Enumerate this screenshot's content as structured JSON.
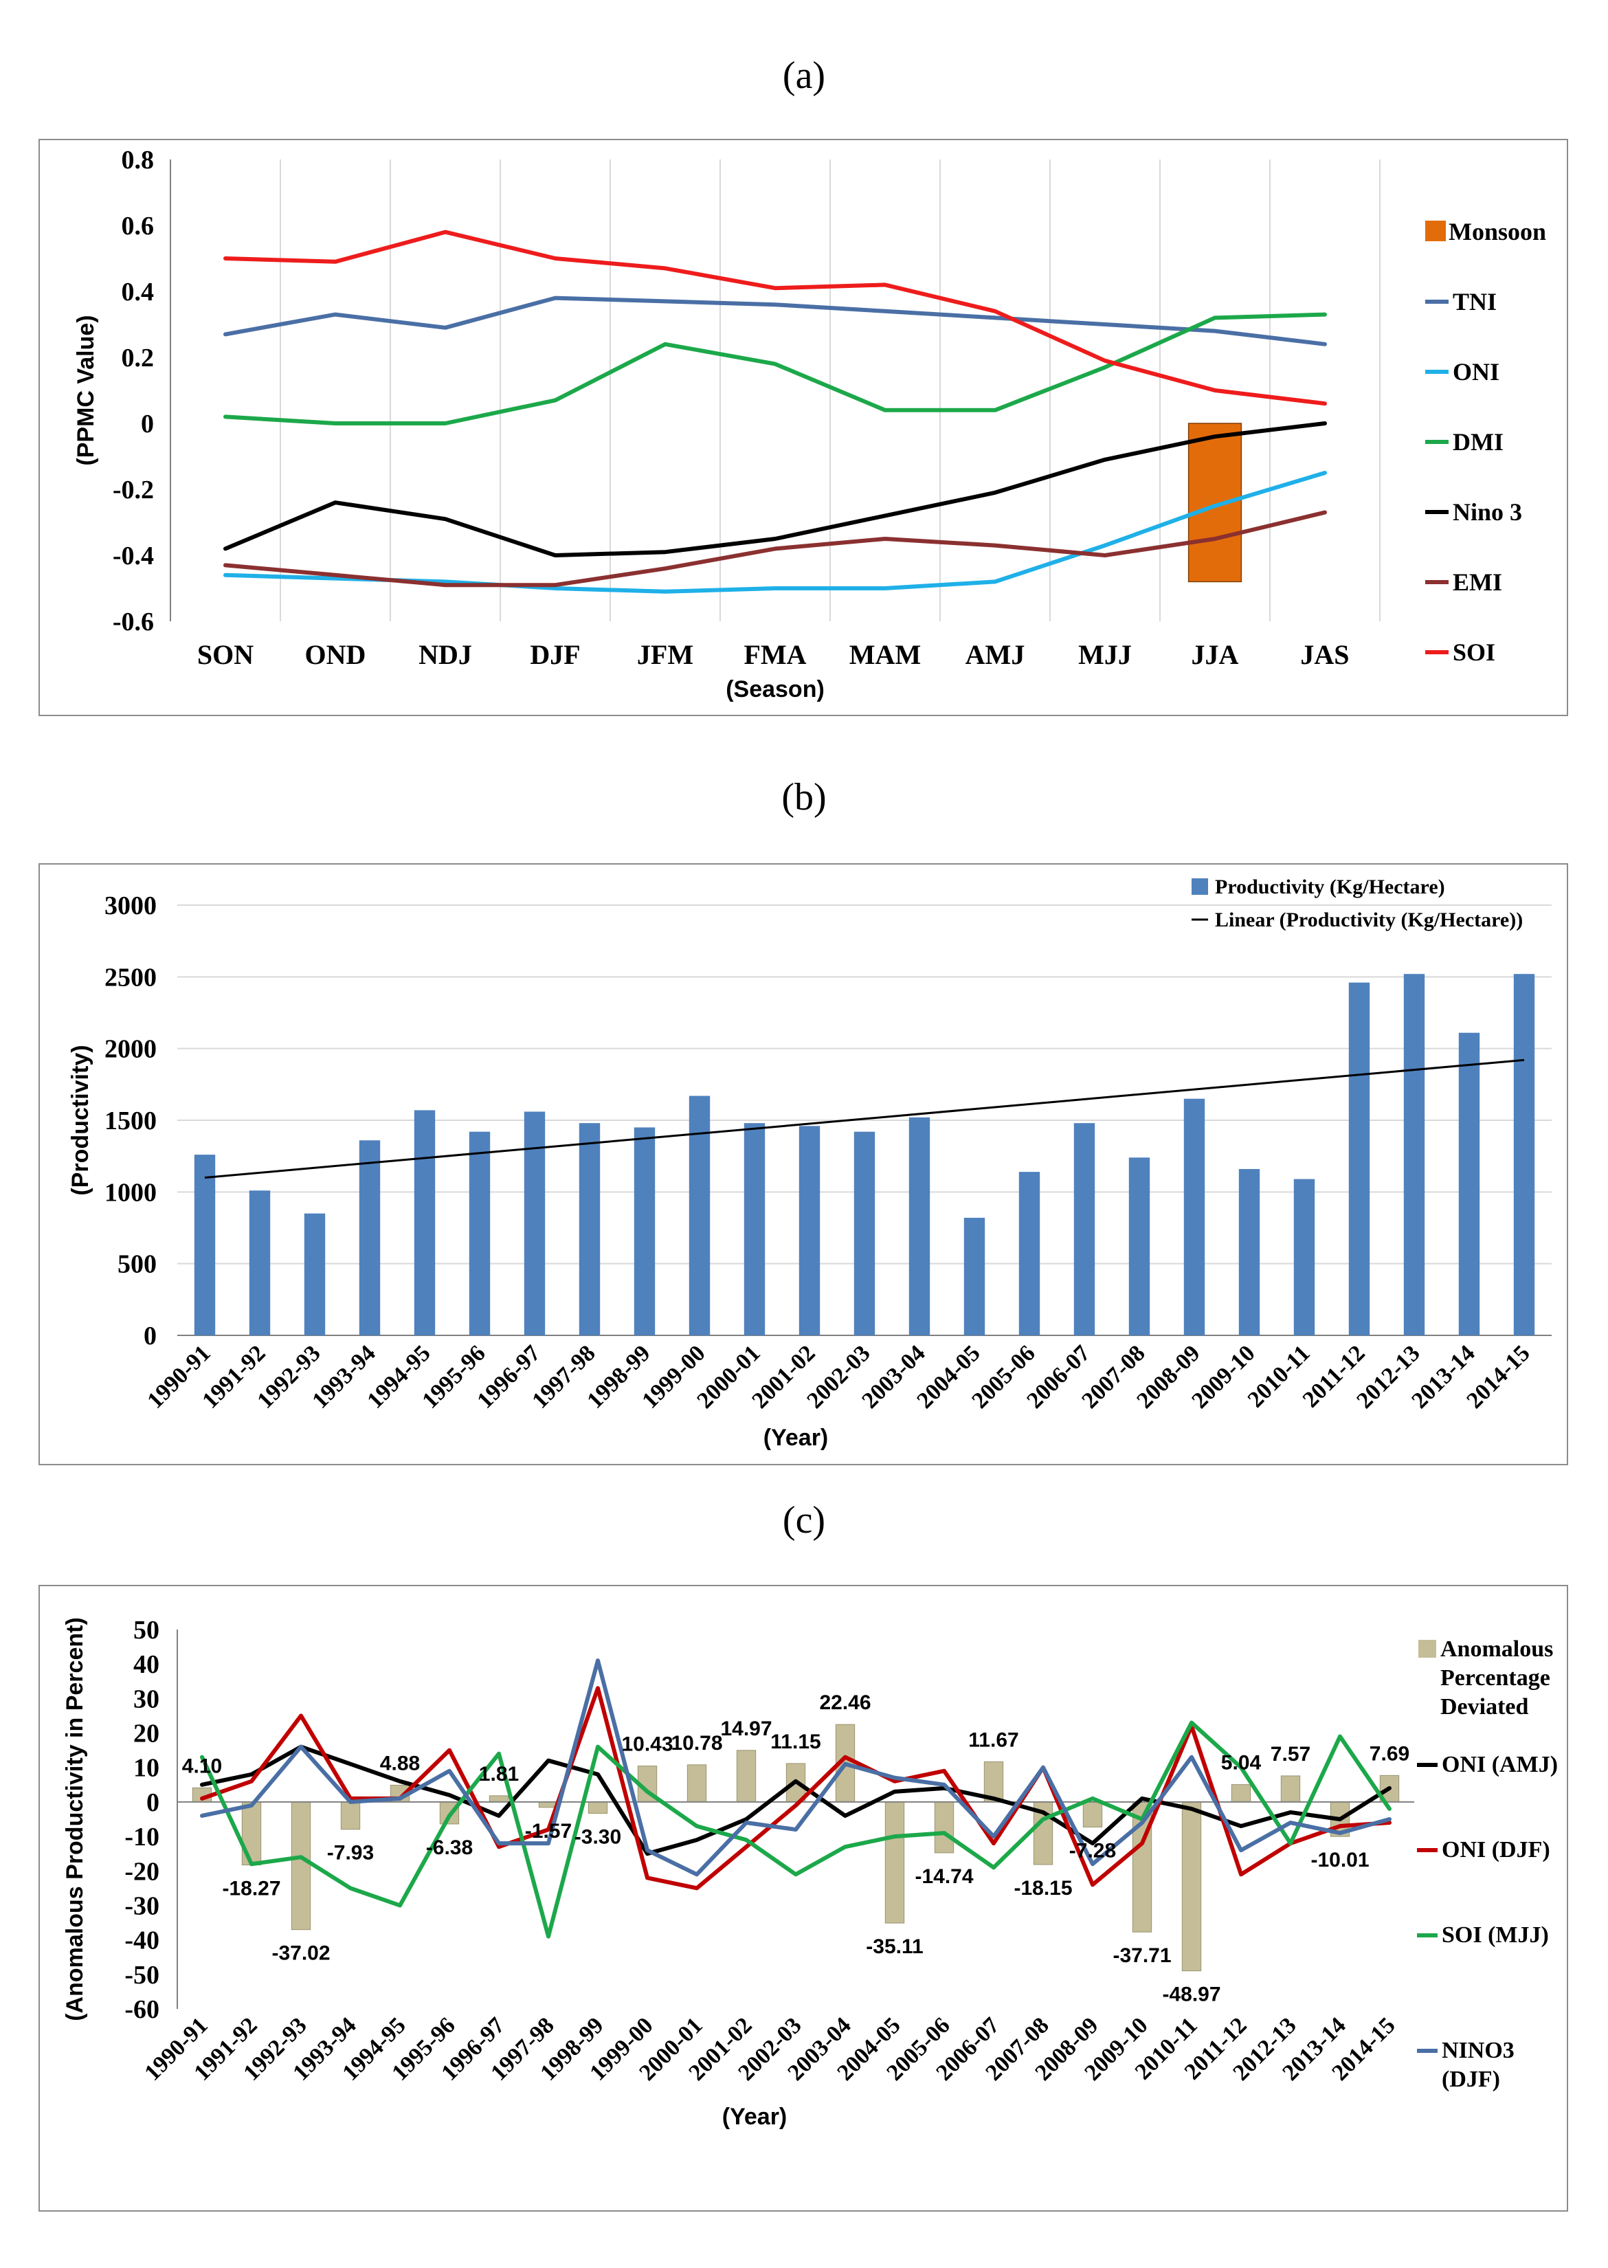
{
  "panels": {
    "a": "(a)",
    "b": "(b)",
    "c": "(c)"
  },
  "chart_data": [
    {
      "type": "line",
      "xlabel": "(Season)",
      "ylabel": "(PPMC Value)",
      "ylim": [
        -0.6,
        0.8
      ],
      "yticks": [
        "0.8",
        "0.6",
        "0.4",
        "0.2",
        "0",
        "-0.2",
        "-0.4",
        "-0.6"
      ],
      "categories": [
        "SON",
        "OND",
        "NDJ",
        "DJF",
        "JFM",
        "FMA",
        "MAM",
        "AMJ",
        "MJJ",
        "JJA",
        "JAS"
      ],
      "grid": "vertical",
      "legend_position": "right",
      "bars": [
        {
          "name": "Monsoon",
          "color": "#e36c0a",
          "category": "JJA",
          "value": -0.48
        }
      ],
      "series": [
        {
          "name": "TNI",
          "color": "#4a6fa5",
          "values": [
            0.27,
            0.33,
            0.29,
            0.38,
            0.37,
            0.36,
            0.34,
            0.32,
            0.3,
            0.28,
            0.24
          ]
        },
        {
          "name": "ONI",
          "color": "#1fb0e8",
          "values": [
            -0.46,
            -0.47,
            -0.48,
            -0.5,
            -0.51,
            -0.5,
            -0.5,
            -0.48,
            -0.37,
            -0.25,
            -0.15
          ]
        },
        {
          "name": "DMI",
          "color": "#1ca84a",
          "values": [
            0.02,
            0.0,
            0.0,
            0.07,
            0.24,
            0.18,
            0.04,
            0.04,
            0.17,
            0.32,
            0.33
          ]
        },
        {
          "name": "Nino 3",
          "color": "#000000",
          "values": [
            -0.38,
            -0.24,
            -0.29,
            -0.4,
            -0.39,
            -0.35,
            -0.28,
            -0.21,
            -0.11,
            -0.04,
            0.0
          ]
        },
        {
          "name": "EMI",
          "color": "#8b3030",
          "values": [
            -0.43,
            -0.46,
            -0.49,
            -0.49,
            -0.44,
            -0.38,
            -0.35,
            -0.37,
            -0.4,
            -0.35,
            -0.27
          ]
        },
        {
          "name": "SOI",
          "color": "#ee1c1c",
          "values": [
            0.5,
            0.49,
            0.58,
            0.5,
            0.47,
            0.41,
            0.42,
            0.34,
            0.19,
            0.1,
            0.06
          ]
        }
      ]
    },
    {
      "type": "bar",
      "xlabel": "(Year)",
      "ylabel": "(Productivity)",
      "ylim": [
        0,
        3000
      ],
      "yticks": [
        "3000",
        "2500",
        "2000",
        "1500",
        "1000",
        "500",
        "0"
      ],
      "categories": [
        "1990-91",
        "1991-92",
        "1992-93",
        "1993-94",
        "1994-95",
        "1995-96",
        "1996-97",
        "1997-98",
        "1998-99",
        "1999-00",
        "2000-01",
        "2001-02",
        "2002-03",
        "2003-04",
        "2004-05",
        "2005-06",
        "2006-07",
        "2007-08",
        "2008-09",
        "2009-10",
        "2010-11",
        "2011-12",
        "2012-13",
        "2013-14",
        "2014-15"
      ],
      "grid": "horizontal",
      "legend_position": "top-right",
      "series": [
        {
          "name": "Productivity (Kg/Hectare)",
          "color": "#4f81bd",
          "values": [
            1260,
            1010,
            850,
            1360,
            1570,
            1420,
            1560,
            1480,
            1450,
            1670,
            1480,
            1460,
            1420,
            1520,
            820,
            1140,
            1480,
            1240,
            1650,
            1160,
            1090,
            2460,
            2520,
            2110,
            2520
          ]
        }
      ],
      "trendline": {
        "name": "Linear (Productivity (Kg/Hectare))",
        "color": "#000000",
        "start": 1100,
        "end": 1920
      }
    },
    {
      "type": "bar",
      "xlabel": "(Year)",
      "ylabel": "(Anomalous Productivity in Percent)",
      "ylim": [
        -60,
        50
      ],
      "yticks": [
        "50",
        "40",
        "30",
        "20",
        "10",
        "0",
        "-10",
        "-20",
        "-30",
        "-40",
        "-50",
        "-60"
      ],
      "categories": [
        "1990-91",
        "1991-92",
        "1992-93",
        "1993-94",
        "1994-95",
        "1995-96",
        "1996-97",
        "1997-98",
        "1998-99",
        "1999-00",
        "2000-01",
        "2001-02",
        "2002-03",
        "2003-04",
        "2004-05",
        "2005-06",
        "2006-07",
        "2007-08",
        "2008-09",
        "2009-10",
        "2010-11",
        "2011-12",
        "2012-13",
        "2013-14",
        "2014-15"
      ],
      "legend_position": "right",
      "bar_series": {
        "name_lines": [
          "Anomalous",
          "Percentage",
          "Deviated"
        ],
        "color": "#c4bd97",
        "values": [
          4.1,
          -18.27,
          -37.02,
          -7.93,
          4.88,
          -6.38,
          1.81,
          -1.57,
          -3.3,
          10.43,
          10.78,
          14.97,
          11.15,
          22.46,
          -35.11,
          -14.74,
          11.67,
          -18.15,
          -7.28,
          -37.71,
          -48.97,
          5.04,
          7.57,
          -10.01,
          7.69
        ],
        "labels": [
          "4.10",
          "-18.27",
          "-37.02",
          "-7.93",
          "4.88",
          "-6.38",
          "1.81",
          "-1.57",
          "-3.30",
          "10.43",
          "10.78",
          "14.97",
          "11.15",
          "22.46",
          "-35.11",
          "-14.74",
          "11.67",
          "-18.15",
          "-7.28",
          "-37.71",
          "-48.97",
          "5.04",
          "7.57",
          "-10.01",
          "7.69"
        ]
      },
      "series": [
        {
          "name_lines": [
            "ONI (AMJ)"
          ],
          "color": "#000000",
          "values": [
            5,
            8,
            16,
            11,
            6,
            2,
            -4,
            12,
            8,
            -15,
            -11,
            -5,
            6,
            -4,
            3,
            4,
            1,
            -3,
            -12,
            1,
            -2,
            -7,
            -3,
            -5,
            4
          ]
        },
        {
          "name_lines": [
            "ONI (DJF)"
          ],
          "color": "#c00000",
          "values": [
            1,
            6,
            25,
            1,
            1,
            15,
            -13,
            -8,
            33,
            -22,
            -25,
            -13,
            -1,
            13,
            6,
            9,
            -12,
            10,
            -24,
            -12,
            22,
            -21,
            -12,
            -7,
            -6
          ]
        },
        {
          "name_lines": [
            "SOI (MJJ)"
          ],
          "color": "#1ca84a",
          "values": [
            13,
            -18,
            -16,
            -25,
            -30,
            -4,
            14,
            -39,
            16,
            3,
            -7,
            -11,
            -21,
            -13,
            -10,
            -9,
            -19,
            -5,
            1,
            -5,
            23,
            10,
            -12,
            19,
            -2
          ]
        },
        {
          "name_lines": [
            "NINO3",
            "(DJF)"
          ],
          "color": "#4a6fa5",
          "values": [
            -4,
            -1,
            16,
            0,
            1,
            9,
            -12,
            -12,
            41,
            -14,
            -21,
            -6,
            -8,
            11,
            7,
            5,
            -10,
            10,
            -18,
            -6,
            13,
            -14,
            -6,
            -9,
            -5
          ]
        }
      ]
    }
  ]
}
